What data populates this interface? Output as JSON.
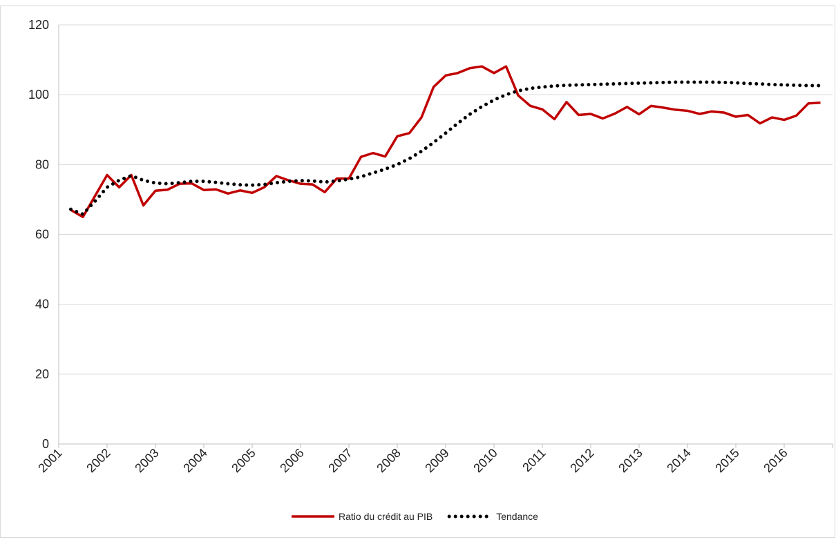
{
  "chart_data": {
    "type": "line",
    "categories": [
      "2001",
      null,
      null,
      null,
      "2002",
      null,
      null,
      null,
      "2003",
      null,
      null,
      null,
      "2004",
      null,
      null,
      null,
      "2005",
      null,
      null,
      null,
      "2006",
      null,
      null,
      null,
      "2007",
      null,
      null,
      null,
      "2008",
      null,
      null,
      null,
      "2009",
      null,
      null,
      null,
      "2010",
      null,
      null,
      null,
      "2011",
      null,
      null,
      null,
      "2012",
      null,
      null,
      null,
      "2013",
      null,
      null,
      null,
      "2014",
      null,
      null,
      null,
      "2015",
      null,
      null,
      null,
      "2016",
      null,
      null,
      null
    ],
    "series": [
      {
        "name": "Ratio du crédit au PIB",
        "color": "#c00000",
        "dash": "solid",
        "values": [
          null,
          67,
          65,
          71,
          77,
          73.5,
          77,
          68.3,
          72.5,
          72.8,
          74.5,
          74.6,
          72.7,
          72.9,
          71.7,
          72.6,
          71.9,
          73.5,
          76.7,
          75.5,
          74.5,
          74.3,
          72.1,
          76,
          76,
          82.2,
          83.3,
          82.3,
          88.1,
          89,
          93.5,
          102.2,
          105.5,
          106.2,
          107.6,
          108.1,
          106.2,
          108.1,
          99.8,
          96.8,
          95.8,
          93,
          97.9,
          94.2,
          94.5,
          93.2,
          94.6,
          96.5,
          94.4,
          96.8,
          96.3,
          95.7,
          95.4,
          94.5,
          95.2,
          94.9,
          93.7,
          94.2,
          91.8,
          93.5,
          92.8,
          94,
          97.5,
          97.7
        ]
      },
      {
        "name": "Tendance",
        "color": "#000000",
        "dash": "dotted",
        "values": [
          null,
          67.2,
          65.8,
          69.5,
          73.5,
          75.5,
          76.8,
          75.5,
          74.7,
          74.5,
          74.8,
          75.2,
          75.2,
          74.9,
          74.5,
          74.2,
          74.1,
          74.3,
          74.8,
          75.2,
          75.4,
          75.3,
          75,
          75.3,
          75.8,
          76.5,
          77.6,
          78.7,
          80,
          81.7,
          83.8,
          86.3,
          89,
          91.8,
          94.4,
          96.6,
          98.5,
          100,
          101.1,
          101.8,
          102.2,
          102.5,
          102.7,
          102.8,
          102.9,
          103,
          103.1,
          103.2,
          103.3,
          103.4,
          103.5,
          103.6,
          103.6,
          103.6,
          103.6,
          103.5,
          103.4,
          103.2,
          103.1,
          102.9,
          102.8,
          102.7,
          102.6,
          102.6
        ]
      }
    ],
    "ylim": [
      0,
      120
    ],
    "yticks": [
      0,
      20,
      40,
      60,
      80,
      100,
      120
    ],
    "grid": true,
    "legend": "bottom"
  }
}
